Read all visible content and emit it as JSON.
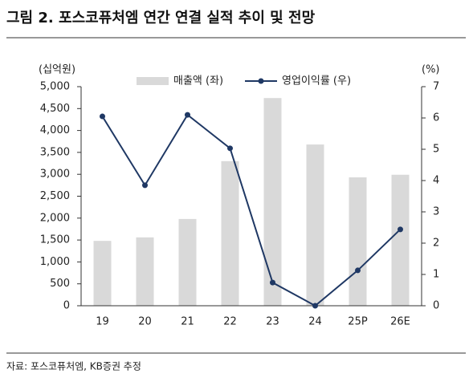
{
  "chart_data": {
    "type": "bar-line",
    "title": "그림 2. 포스코퓨처엠 연간 연결 실적 추이 및 전망",
    "y_label": "(십억원)",
    "y2_label": "(%)",
    "source": "자료: 포스코퓨처엠, KB증권 추정",
    "categories": [
      "19",
      "20",
      "21",
      "22",
      "23",
      "24",
      "25P",
      "26E"
    ],
    "series": [
      {
        "name": "매출액 (좌)",
        "type": "bar",
        "color": "#d9d9d9",
        "values": [
          1480,
          1560,
          1980,
          3300,
          4740,
          3680,
          2930,
          2990
        ]
      },
      {
        "name": "영업이익률 (우)",
        "type": "line",
        "axis": "y2",
        "color": "#1f3864",
        "values": [
          6.05,
          3.85,
          6.1,
          5.03,
          0.74,
          0,
          1.13,
          2.44
        ]
      }
    ],
    "ylim": [
      0,
      5000
    ],
    "yticks": [
      0,
      500,
      {
        "value": 1000,
        "label": "1,000"
      },
      {
        "value": 1500,
        "label": "1,500"
      },
      {
        "value": 2000,
        "label": "2,000"
      },
      {
        "value": 2500,
        "label": "2,500"
      },
      {
        "value": 3000,
        "label": "3,000"
      },
      {
        "value": 3500,
        "label": "3,500"
      },
      {
        "value": 4000,
        "label": "4,000"
      },
      {
        "value": 4500,
        "label": "4,500"
      },
      {
        "value": 5000,
        "label": "5,000"
      }
    ],
    "y2lim": [
      0,
      7
    ],
    "y2ticks": [
      0,
      1,
      2,
      3,
      4,
      5,
      6,
      7
    ]
  }
}
